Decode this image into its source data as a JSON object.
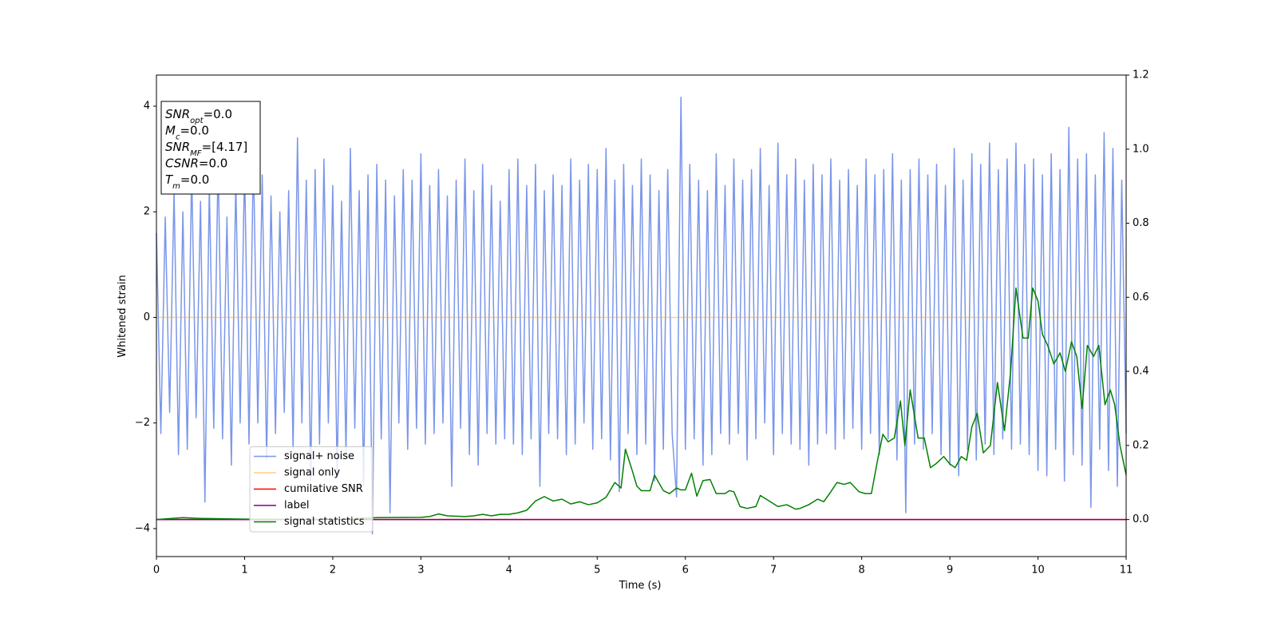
{
  "chart_data": {
    "type": "line",
    "xlabel": "Time (s)",
    "ylabel": "Whitened strain",
    "xlim": [
      0,
      11
    ],
    "xticks": [
      0,
      1,
      2,
      3,
      4,
      5,
      6,
      7,
      8,
      9,
      10,
      11
    ],
    "ylim": [
      -4.53,
      4.59
    ],
    "yticks": [
      {
        "value": -4,
        "label": "−4"
      },
      {
        "value": -2,
        "label": "−2"
      },
      0,
      2,
      4
    ],
    "y2lim": [
      -0.1,
      1.2
    ],
    "y2ticks": [
      {
        "value": 0,
        "label": "0.0"
      },
      0.2,
      0.4,
      0.6,
      0.8,
      {
        "value": 1,
        "label": "1.0"
      },
      1.2
    ],
    "legend": "lower left",
    "annotations": [
      {
        "symbol": "SNR",
        "sub": "opt",
        "text": "=0.0"
      },
      {
        "symbol": "M",
        "sub": "c",
        "text": "=0.0"
      },
      {
        "symbol": "SNR",
        "sub": "MF",
        "text": "=[4.17]"
      },
      {
        "symbol": "CSNR",
        "text": "=0.0"
      },
      {
        "symbol": "T",
        "sub": "m",
        "text": "=0.0"
      }
    ],
    "series": [
      {
        "name": "signal+ noise",
        "color": "#4169e1",
        "alpha": 0.7,
        "x": [
          0,
          0.05,
          0.1,
          0.15,
          0.2,
          0.25,
          0.3,
          0.35,
          0.4,
          0.45,
          0.5,
          0.55,
          0.6,
          0.65,
          0.7,
          0.75,
          0.8,
          0.85,
          0.9,
          0.95,
          1,
          1.05,
          1.1,
          1.15,
          1.2,
          1.25,
          1.3,
          1.35,
          1.4,
          1.45,
          1.5,
          1.55,
          1.6,
          1.65,
          1.7,
          1.75,
          1.8,
          1.85,
          1.9,
          1.95,
          2,
          2.05,
          2.1,
          2.15,
          2.2,
          2.25,
          2.3,
          2.35,
          2.4,
          2.45,
          2.5,
          2.55,
          2.6,
          2.65,
          2.7,
          2.75,
          2.8,
          2.85,
          2.9,
          2.95,
          3,
          3.05,
          3.1,
          3.15,
          3.2,
          3.25,
          3.3,
          3.35,
          3.4,
          3.45,
          3.5,
          3.55,
          3.6,
          3.65,
          3.7,
          3.75,
          3.8,
          3.85,
          3.9,
          3.95,
          4,
          4.05,
          4.1,
          4.15,
          4.2,
          4.25,
          4.3,
          4.35,
          4.4,
          4.45,
          4.5,
          4.55,
          4.6,
          4.65,
          4.7,
          4.75,
          4.8,
          4.85,
          4.9,
          4.95,
          5,
          5.05,
          5.1,
          5.15,
          5.2,
          5.25,
          5.3,
          5.35,
          5.4,
          5.45,
          5.5,
          5.55,
          5.6,
          5.65,
          5.7,
          5.75,
          5.8,
          5.85,
          5.9,
          5.95,
          6,
          6.05,
          6.1,
          6.15,
          6.2,
          6.25,
          6.3,
          6.35,
          6.4,
          6.45,
          6.5,
          6.55,
          6.6,
          6.65,
          6.7,
          6.75,
          6.8,
          6.85,
          6.9,
          6.95,
          7,
          7.05,
          7.1,
          7.15,
          7.2,
          7.25,
          7.3,
          7.35,
          7.4,
          7.45,
          7.5,
          7.55,
          7.6,
          7.65,
          7.7,
          7.75,
          7.8,
          7.85,
          7.9,
          7.95,
          8,
          8.05,
          8.1,
          8.15,
          8.2,
          8.25,
          8.3,
          8.35,
          8.4,
          8.45,
          8.5,
          8.55,
          8.6,
          8.65,
          8.7,
          8.75,
          8.8,
          8.85,
          8.9,
          8.95,
          9,
          9.05,
          9.1,
          9.15,
          9.2,
          9.25,
          9.3,
          9.35,
          9.4,
          9.45,
          9.5,
          9.55,
          9.6,
          9.65,
          9.7,
          9.75,
          9.8,
          9.85,
          9.9,
          9.95,
          10,
          10.05,
          10.1,
          10.15,
          10.2,
          10.25,
          10.3,
          10.35,
          10.4,
          10.45,
          10.5,
          10.55,
          10.6,
          10.65,
          10.7,
          10.75,
          10.8,
          10.85,
          10.9,
          10.95,
          11
        ],
        "values": [
          1.6,
          -2.2,
          1.9,
          -1.8,
          2.4,
          -2.6,
          2.0,
          -2.5,
          2.8,
          -1.9,
          2.2,
          -3.5,
          2.5,
          -2.1,
          3.0,
          -2.3,
          1.9,
          -2.8,
          2.6,
          -2.0,
          2.9,
          -2.4,
          3.1,
          -2.0,
          2.7,
          -2.7,
          2.3,
          -2.2,
          2.0,
          -1.8,
          2.4,
          -2.5,
          3.4,
          -2.0,
          2.6,
          -3.1,
          2.8,
          -2.4,
          3.0,
          -2.0,
          2.5,
          -3.0,
          2.2,
          -2.6,
          3.2,
          -2.1,
          2.4,
          -3.2,
          2.7,
          -4.1,
          2.9,
          -2.3,
          2.6,
          -3.7,
          2.3,
          -2.0,
          2.8,
          -2.5,
          2.6,
          -2.1,
          3.1,
          -2.4,
          2.5,
          -2.2,
          2.8,
          -2.0,
          2.3,
          -3.2,
          2.6,
          -2.1,
          3.0,
          -2.6,
          2.4,
          -2.8,
          2.9,
          -2.2,
          2.5,
          -2.4,
          2.2,
          -2.3,
          2.8,
          -2.4,
          3.0,
          -2.6,
          2.5,
          -2.3,
          2.9,
          -3.2,
          2.4,
          -2.2,
          2.7,
          -2.3,
          2.5,
          -2.6,
          3.0,
          -2.4,
          2.6,
          -2.0,
          2.9,
          -2.5,
          2.8,
          -2.3,
          3.2,
          -2.7,
          2.6,
          -3.3,
          2.9,
          -2.2,
          2.5,
          -2.6,
          3.0,
          -2.4,
          2.7,
          -3.1,
          2.4,
          -2.5,
          2.8,
          -2.2,
          -3.4,
          4.17,
          -2.5,
          2.9,
          -2.3,
          2.6,
          -2.8,
          2.4,
          -2.6,
          3.1,
          -2.2,
          2.5,
          -2.4,
          3.0,
          -2.2,
          2.6,
          -2.7,
          2.8,
          -2.3,
          3.2,
          -2.0,
          2.5,
          -2.6,
          3.3,
          -2.2,
          2.7,
          -2.4,
          3.0,
          -2.5,
          2.6,
          -2.8,
          2.9,
          -2.4,
          2.7,
          -2.2,
          3.0,
          -2.5,
          2.6,
          -2.3,
          2.8,
          -2.1,
          2.5,
          -2.5,
          3.0,
          -2.2,
          2.7,
          -2.6,
          2.8,
          -2.3,
          3.1,
          -2.7,
          2.6,
          -3.7,
          2.8,
          -2.4,
          3.0,
          -2.5,
          2.7,
          -2.2,
          2.9,
          -2.6,
          2.5,
          -2.8,
          3.2,
          -3.0,
          2.6,
          -2.5,
          3.1,
          -2.7,
          2.9,
          -2.4,
          3.3,
          -2.6,
          2.8,
          -2.3,
          3.0,
          -2.5,
          3.3,
          -2.4,
          2.9,
          -2.6,
          3.0,
          -2.9,
          2.7,
          -3.0,
          3.1,
          -2.5,
          2.8,
          -3.1,
          3.6,
          -2.6,
          3.0,
          -2.8,
          3.1,
          -3.6,
          2.7,
          -2.5,
          3.5,
          -2.9,
          3.2,
          -3.2,
          2.6,
          -2.2
        ]
      },
      {
        "name": "signal only",
        "color": "#ffa500",
        "alpha": 0.5,
        "x": [
          0,
          11
        ],
        "values": [
          0,
          0
        ]
      },
      {
        "name": "cumilative SNR",
        "color": "#ff0000",
        "axis": "y2",
        "x": [
          0,
          11
        ],
        "values": [
          0,
          0
        ]
      },
      {
        "name": "label",
        "color": "#800080",
        "axis": "y2",
        "x": [
          0,
          11
        ],
        "values": [
          0,
          0
        ]
      },
      {
        "name": "signal statistics",
        "color": "#008000",
        "axis": "y2",
        "x": [
          0,
          0.3,
          0.5,
          1,
          2,
          2.5,
          3,
          3.1,
          3.2,
          3.3,
          3.5,
          3.6,
          3.7,
          3.8,
          3.9,
          4,
          4.1,
          4.2,
          4.3,
          4.4,
          4.5,
          4.6,
          4.7,
          4.8,
          4.9,
          5,
          5.1,
          5.2,
          5.27,
          5.32,
          5.4,
          5.45,
          5.5,
          5.6,
          5.65,
          5.75,
          5.82,
          5.9,
          5.95,
          6,
          6.07,
          6.13,
          6.2,
          6.28,
          6.35,
          6.45,
          6.5,
          6.55,
          6.62,
          6.7,
          6.8,
          6.85,
          6.95,
          7.05,
          7.15,
          7.25,
          7.3,
          7.4,
          7.5,
          7.57,
          7.65,
          7.72,
          7.8,
          7.87,
          7.97,
          8.04,
          8.11,
          8.18,
          8.24,
          8.3,
          8.37,
          8.44,
          8.49,
          8.55,
          8.64,
          8.71,
          8.78,
          8.84,
          8.93,
          9,
          9.06,
          9.13,
          9.19,
          9.25,
          9.31,
          9.38,
          9.46,
          9.54,
          9.62,
          9.69,
          9.75,
          9.83,
          9.89,
          9.94,
          10,
          10.05,
          10.11,
          10.18,
          10.25,
          10.31,
          10.38,
          10.44,
          10.5,
          10.56,
          10.63,
          10.69,
          10.76,
          10.82,
          10.87,
          10.93,
          11
        ],
        "values": [
          0,
          0.005,
          0.003,
          0.001,
          0,
          0.005,
          0.006,
          0.008,
          0.015,
          0.01,
          0.008,
          0.01,
          0.014,
          0.01,
          0.014,
          0.014,
          0.018,
          0.025,
          0.05,
          0.062,
          0.05,
          0.055,
          0.042,
          0.048,
          0.04,
          0.045,
          0.06,
          0.1,
          0.085,
          0.19,
          0.13,
          0.09,
          0.078,
          0.078,
          0.12,
          0.078,
          0.07,
          0.085,
          0.08,
          0.08,
          0.125,
          0.063,
          0.105,
          0.108,
          0.07,
          0.07,
          0.078,
          0.075,
          0.035,
          0.03,
          0.035,
          0.065,
          0.05,
          0.035,
          0.04,
          0.028,
          0.03,
          0.04,
          0.055,
          0.048,
          0.075,
          0.1,
          0.095,
          0.1,
          0.075,
          0.07,
          0.07,
          0.16,
          0.23,
          0.21,
          0.22,
          0.32,
          0.2,
          0.35,
          0.22,
          0.22,
          0.14,
          0.15,
          0.17,
          0.15,
          0.14,
          0.17,
          0.16,
          0.25,
          0.287,
          0.18,
          0.2,
          0.37,
          0.24,
          0.4,
          0.625,
          0.49,
          0.49,
          0.625,
          0.59,
          0.5,
          0.47,
          0.42,
          0.45,
          0.4,
          0.48,
          0.44,
          0.3,
          0.47,
          0.44,
          0.47,
          0.31,
          0.35,
          0.31,
          0.2,
          0.12
        ]
      }
    ]
  }
}
